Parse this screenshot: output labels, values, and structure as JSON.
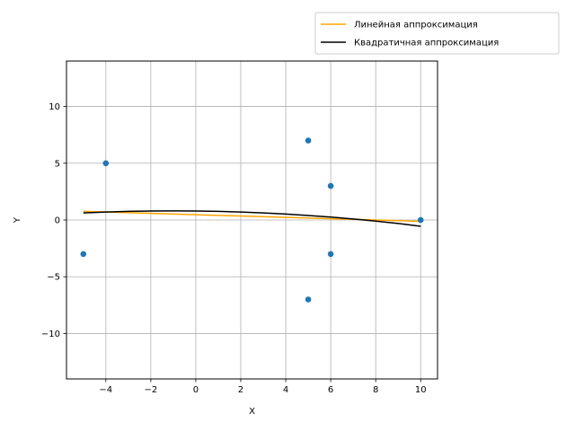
{
  "chart_data": {
    "type": "scatter",
    "xlabel": "X",
    "ylabel": "Y",
    "xlim": [
      -5.75,
      10.75
    ],
    "ylim": [
      -14,
      14
    ],
    "xticks": [
      -4,
      -2,
      0,
      2,
      4,
      6,
      8,
      10
    ],
    "yticks": [
      -10,
      -5,
      0,
      5,
      10
    ],
    "xtick_labels": [
      "−4",
      "−2",
      "0",
      "2",
      "4",
      "6",
      "8",
      "10"
    ],
    "ytick_labels": [
      "−10",
      "−5",
      "0",
      "5",
      "10"
    ],
    "grid": true,
    "legend_position": "above-right, outside plot",
    "points": {
      "color": "#1f77b4",
      "x": [
        -5,
        -4,
        5,
        5,
        6,
        6,
        10
      ],
      "y": [
        -3,
        5,
        7,
        -7,
        3,
        -3,
        0
      ]
    },
    "series": [
      {
        "name": "Линейная аппроксимация",
        "color": "#ffa500",
        "fit": "linear",
        "x": [
          -5,
          10
        ],
        "y": [
          0.76,
          -0.12
        ]
      },
      {
        "name": "Квадратичная аппроксимация",
        "color": "#000000",
        "fit": "quadratic",
        "x": [
          -5,
          -4,
          -3,
          -2,
          -1,
          0,
          1,
          2,
          3,
          4,
          5,
          6,
          7,
          8,
          9,
          10
        ],
        "y": [
          0.62,
          0.7,
          0.76,
          0.79,
          0.8,
          0.79,
          0.76,
          0.7,
          0.62,
          0.52,
          0.4,
          0.26,
          0.09,
          -0.1,
          -0.31,
          -0.55
        ]
      }
    ]
  }
}
